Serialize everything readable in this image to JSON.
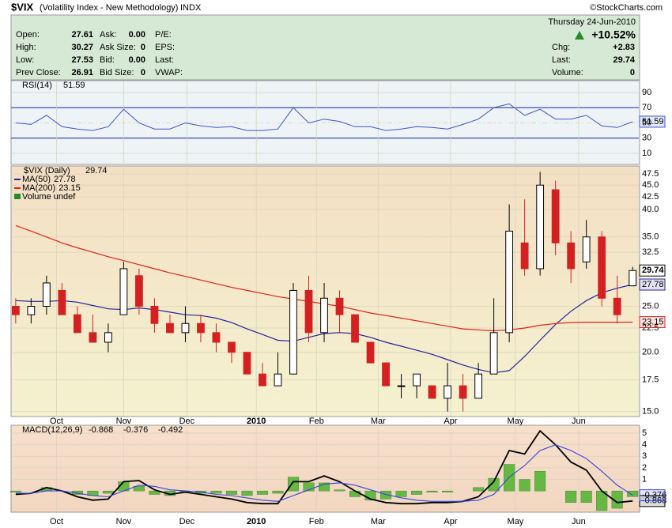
{
  "header": {
    "title": "$VIX",
    "subtitle": "(Volatility Index - New Methodology)",
    "exchange": "INDX",
    "credit": "©StockCharts.com",
    "date": "Thursday  24-Jun-2010",
    "change_pct": "+10.52%",
    "columns": [
      [
        {
          "label": "Open:",
          "value": "27.61"
        },
        {
          "label": "High:",
          "value": "30.27"
        },
        {
          "label": "Low:",
          "value": "27.53"
        },
        {
          "label": "Prev Close:",
          "value": "26.91"
        }
      ],
      [
        {
          "label": "Ask:",
          "value": "0.00"
        },
        {
          "label": "Ask Size:",
          "value": "0"
        },
        {
          "label": "Bid:",
          "value": "0.00"
        },
        {
          "label": "Bid Size:",
          "value": "0"
        }
      ],
      [
        {
          "label": "P/E:"
        },
        {
          "label": "EPS:"
        },
        {
          "label": "Last:"
        },
        {
          "label": "VWAP:"
        }
      ]
    ],
    "right": [
      {
        "label": "Chg:",
        "value": "+2.83"
      },
      {
        "label": "Last:",
        "value": "29.74"
      },
      {
        "label": "Volume:",
        "value": "0"
      }
    ]
  },
  "chart_data": [
    {
      "type": "line",
      "legend": "RSI(14)",
      "ylim": [
        -2.5,
        103.5
      ],
      "yticks": [
        10,
        30,
        50,
        70,
        90
      ],
      "overbought": 70,
      "midline": 50,
      "oversold": 30,
      "xlim": [
        -0.3,
        40.4
      ],
      "series": [
        {
          "name": "RSI(14)",
          "color": "#3b55c8",
          "values": [
            50,
            48,
            60,
            45,
            42,
            40,
            45,
            68,
            50,
            42,
            42,
            50,
            46,
            44,
            45,
            40,
            40,
            42,
            70,
            50,
            55,
            52,
            45,
            45,
            40,
            42,
            45,
            44,
            42,
            48,
            55,
            70,
            75,
            60,
            68,
            55,
            55,
            60,
            46,
            44,
            51.59
          ]
        }
      ]
    },
    {
      "type": "candlestick",
      "legend": "$VIX (Daily)",
      "log": true,
      "ylim": [
        14.7,
        49
      ],
      "xlim": [
        -0.3,
        40.4
      ],
      "up_color": "#000000",
      "down_color": "#d42020",
      "yticks": [
        {
          "value": 15,
          "label": "15.0"
        },
        {
          "value": 17.5,
          "label": "17.5"
        },
        {
          "value": 20,
          "label": "20.0"
        },
        {
          "value": 22.5,
          "label": "22.5"
        },
        {
          "value": 25,
          "label": "25.0"
        },
        {
          "value": 32.5,
          "label": "32.5"
        },
        {
          "value": 35,
          "label": "35.0"
        },
        {
          "value": 40,
          "label": "40.0"
        },
        {
          "value": 42.5,
          "label": "42.5"
        },
        {
          "value": 45,
          "label": "45.0"
        },
        {
          "value": 47.5,
          "label": "47.5"
        }
      ],
      "xticks": [
        {
          "value": 2.65,
          "label": "Oct"
        },
        {
          "value": 7.0,
          "label": "Nov"
        },
        {
          "value": 11.1,
          "label": "Dec"
        },
        {
          "value": 15.6,
          "label": "2010"
        },
        {
          "value": 19.5,
          "label": "Feb"
        },
        {
          "value": 23.5,
          "label": "Mar"
        },
        {
          "value": 28.2,
          "label": "Apr"
        },
        {
          "value": 32.4,
          "label": "May"
        },
        {
          "value": 36.5,
          "label": "Jun"
        }
      ],
      "open": [
        25,
        24,
        25,
        27,
        24,
        22,
        21,
        24,
        29,
        25,
        23,
        22,
        23,
        22,
        21,
        20,
        18,
        17,
        18,
        27,
        22,
        26,
        24,
        21,
        19,
        17,
        17,
        17,
        16,
        17,
        16,
        18,
        22,
        34,
        30,
        44,
        34,
        31,
        35,
        26,
        27.61
      ],
      "high": [
        26,
        26,
        29,
        28,
        25,
        24,
        23,
        31,
        30,
        26,
        24,
        25,
        24,
        23,
        21,
        20,
        19,
        20,
        28,
        29,
        28,
        27,
        24,
        21,
        19,
        18,
        18,
        17,
        19,
        18,
        19,
        26,
        41,
        42,
        48,
        46,
        36,
        38,
        36,
        29,
        30.27
      ],
      "low": [
        23,
        23,
        24,
        24,
        22,
        21,
        20,
        24,
        24,
        22,
        22,
        21,
        21,
        20,
        19,
        18,
        17,
        17,
        18,
        21,
        21,
        22,
        21,
        19,
        17,
        16,
        16,
        16,
        15,
        15,
        16,
        18,
        21,
        29,
        29,
        32,
        28,
        30,
        25,
        23,
        27.53
      ],
      "close": [
        24,
        25,
        28,
        24,
        22,
        21,
        22,
        30,
        25,
        23,
        22,
        23,
        22,
        21,
        20,
        18,
        17,
        18,
        27,
        22,
        26,
        24,
        21,
        19,
        17,
        17,
        18,
        16,
        17,
        16,
        18,
        22,
        36,
        30,
        45,
        34,
        30,
        35,
        26,
        24,
        29.74
      ],
      "series": [
        {
          "name": "MA(50)",
          "color": "#23239a",
          "values": [
            25.7,
            25.6,
            25.6,
            25.7,
            25.5,
            25.1,
            24.7,
            24.6,
            24.8,
            24.6,
            24.3,
            24.0,
            23.9,
            23.6,
            23.1,
            22.4,
            21.8,
            21.2,
            21.1,
            21.5,
            21.9,
            22.0,
            21.9,
            21.5,
            21.0,
            20.6,
            20.2,
            19.8,
            19.3,
            18.8,
            18.4,
            18.1,
            18.3,
            19.6,
            21.2,
            22.9,
            24.4,
            25.7,
            26.7,
            27.3,
            27.78
          ]
        },
        {
          "name": "MA(200)",
          "color": "#e0221b",
          "values": [
            37.0,
            36.0,
            35.0,
            34.0,
            33.2,
            32.5,
            31.8,
            31.2,
            30.6,
            30.0,
            29.4,
            28.9,
            28.4,
            27.9,
            27.4,
            27.0,
            26.6,
            26.2,
            25.9,
            25.6,
            25.3,
            25.0,
            24.6,
            24.2,
            23.9,
            23.6,
            23.3,
            23.0,
            22.7,
            22.4,
            22.3,
            22.2,
            22.3,
            22.5,
            22.8,
            23.0,
            23.1,
            23.15,
            23.15,
            23.15,
            23.15
          ]
        }
      ],
      "extra_legend": "Volume undef"
    },
    {
      "type": "macd",
      "legend": "MACD(12,26,9)",
      "ylim": [
        -1.7,
        5.55
      ],
      "yticks": [
        1,
        2,
        3,
        4,
        5
      ],
      "xlim": [
        -0.3,
        40.4
      ],
      "xticks": [
        {
          "value": 2.65,
          "label": "Oct"
        },
        {
          "value": 7.0,
          "label": "Nov"
        },
        {
          "value": 11.1,
          "label": "Dec"
        },
        {
          "value": 15.6,
          "label": "2010"
        },
        {
          "value": 19.5,
          "label": "Feb"
        },
        {
          "value": 23.5,
          "label": "Mar"
        },
        {
          "value": 28.2,
          "label": "Apr"
        },
        {
          "value": 32.4,
          "label": "May"
        },
        {
          "value": 36.5,
          "label": "Jun"
        }
      ],
      "series": [
        {
          "name": "MACD",
          "color": "#000000",
          "style": "line",
          "values": [
            -0.3,
            -0.2,
            0.3,
            0,
            -0.5,
            -0.8,
            -0.7,
            0.8,
            0.9,
            0.1,
            -0.3,
            -0.1,
            -0.3,
            -0.5,
            -0.7,
            -1,
            -1.1,
            -1.1,
            0.8,
            0.8,
            1.3,
            0.8,
            0,
            -0.7,
            -1,
            -1.1,
            -1.1,
            -1,
            -1,
            -0.9,
            -0.5,
            0.8,
            3.5,
            3.2,
            5.2,
            4,
            2.5,
            1.8,
            0,
            -1,
            -0.868
          ]
        },
        {
          "name": "Signal",
          "color": "#3344dd",
          "style": "line",
          "values": [
            -0.2,
            -0.2,
            0,
            0,
            -0.2,
            -0.4,
            -0.5,
            0,
            0.5,
            0.4,
            0.1,
            0,
            -0.1,
            -0.3,
            -0.4,
            -0.6,
            -0.8,
            -0.9,
            -0.4,
            0.1,
            0.6,
            0.7,
            0.5,
            0.1,
            -0.3,
            -0.6,
            -0.8,
            -0.9,
            -0.9,
            -0.9,
            -0.8,
            -0.3,
            1.2,
            2.2,
            3.5,
            4.0,
            3.5,
            2.8,
            1.7,
            0.5,
            -0.376
          ]
        },
        {
          "name": "Histogram",
          "color": "#66b844",
          "style": "histogram",
          "values": [
            -0.1,
            0,
            0.3,
            0,
            -0.3,
            -0.4,
            -0.2,
            0.8,
            0.4,
            -0.3,
            -0.4,
            -0.1,
            -0.2,
            -0.2,
            -0.3,
            -0.4,
            -0.3,
            -0.2,
            1.2,
            0.7,
            0.7,
            0.1,
            -0.5,
            -0.8,
            -0.7,
            -0.5,
            -0.3,
            -0.1,
            -0.1,
            0,
            0.3,
            1.1,
            2.3,
            1.0,
            1.7,
            0,
            -1.0,
            -1.0,
            -1.7,
            -1.5,
            -0.492
          ]
        }
      ]
    }
  ]
}
